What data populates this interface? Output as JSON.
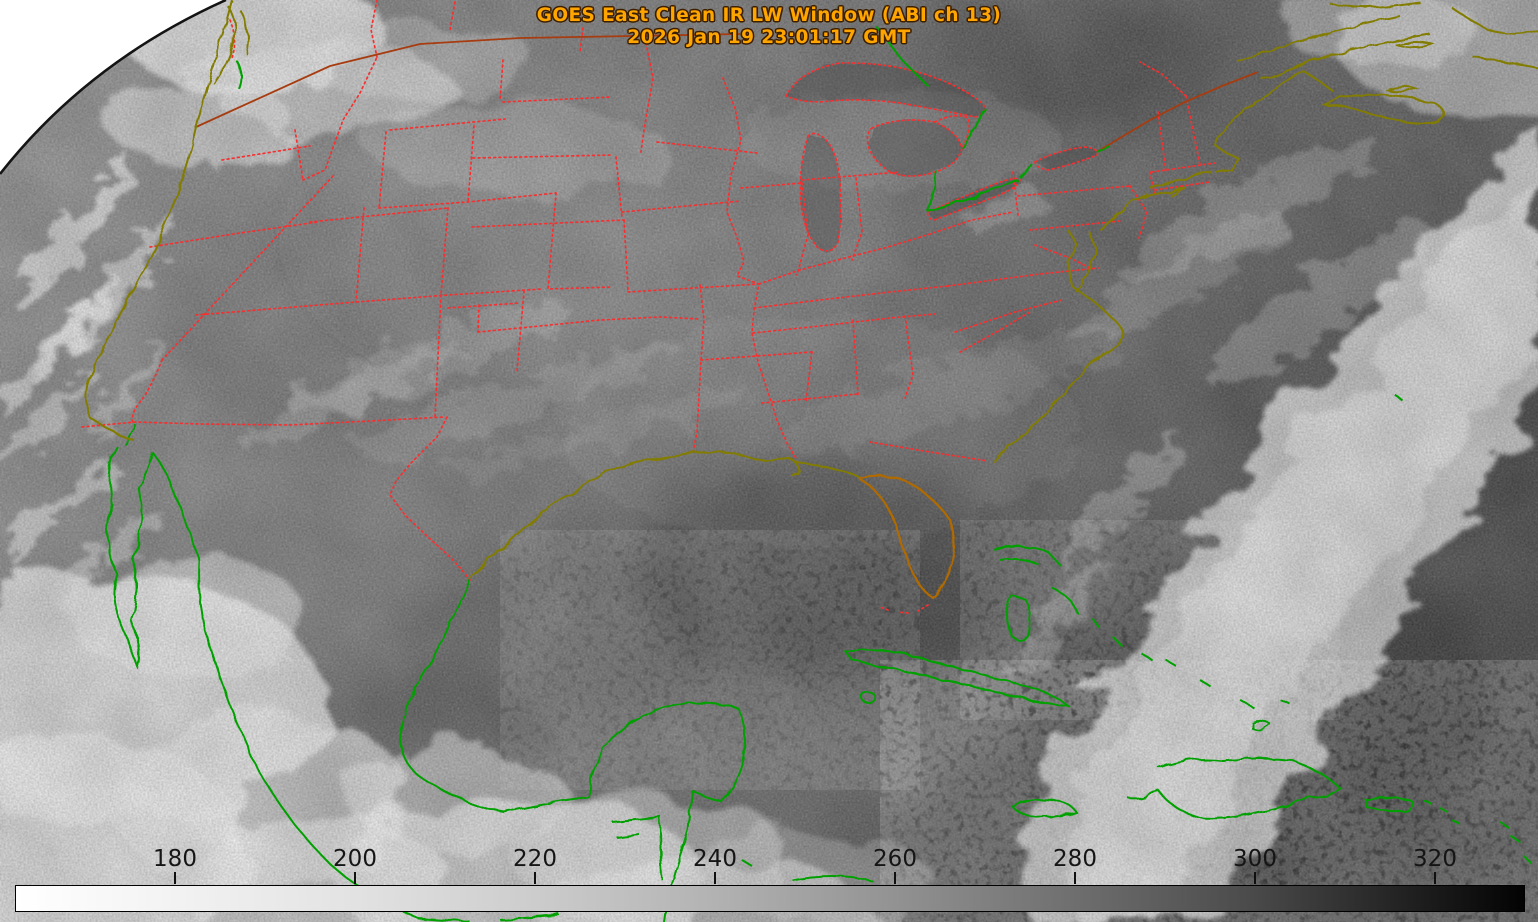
{
  "header": {
    "title_line1": "GOES East Clean IR LW Window (ABI ch 13)",
    "title_line2": "2026 Jan 19 23:01:17 GMT",
    "title_color": "#FFA500"
  },
  "colorbar": {
    "ticks": [
      180,
      200,
      220,
      240,
      260,
      280,
      300,
      320
    ],
    "gradient_left": "#FFFFFF",
    "gradient_right": "#000000"
  },
  "overlay_colors": {
    "state_province_borders": "#F63030",
    "us_coastline": "#827C00",
    "florida_coastline": "#B06A00",
    "international_water_borders": "#00A005",
    "canada_border": "#A63C10"
  }
}
